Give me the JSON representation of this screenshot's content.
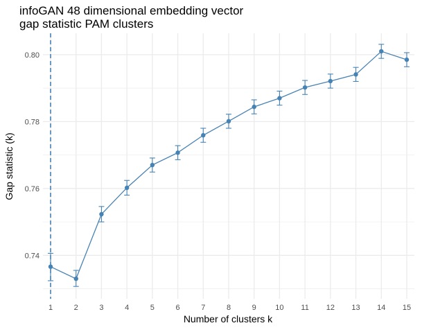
{
  "chart_data": {
    "type": "line",
    "title_lines": [
      "infoGAN 48 dimensional embedding vector",
      "gap statistic PAM clusters"
    ],
    "xlabel": "Number of clusters k",
    "ylabel": "Gap statistic (k)",
    "x": [
      1,
      2,
      3,
      4,
      5,
      6,
      7,
      8,
      9,
      10,
      11,
      12,
      13,
      14,
      15
    ],
    "y": [
      0.7366,
      0.733,
      0.7523,
      0.7602,
      0.767,
      0.7707,
      0.7759,
      0.7801,
      0.7844,
      0.787,
      0.7902,
      0.7921,
      0.7941,
      0.801,
      0.7985
    ],
    "error_low": [
      0.7324,
      0.7307,
      0.75,
      0.758,
      0.7649,
      0.7686,
      0.7738,
      0.778,
      0.7823,
      0.7849,
      0.7881,
      0.79,
      0.792,
      0.7989,
      0.7964
    ],
    "error_high": [
      0.7406,
      0.7355,
      0.7546,
      0.7624,
      0.7691,
      0.7728,
      0.778,
      0.7822,
      0.7865,
      0.7891,
      0.7923,
      0.7942,
      0.7962,
      0.8031,
      0.8006
    ],
    "x_ticks": [
      1,
      2,
      3,
      4,
      5,
      6,
      7,
      8,
      9,
      10,
      11,
      12,
      13,
      14,
      15
    ],
    "x_tick_labels": [
      "1",
      "2",
      "3",
      "4",
      "5",
      "6",
      "7",
      "8",
      "9",
      "10",
      "11",
      "12",
      "13",
      "14",
      "15"
    ],
    "y_ticks": [
      0.74,
      0.76,
      0.78,
      0.8
    ],
    "y_tick_labels": [
      "0.74",
      "0.76",
      "0.78",
      "0.80"
    ],
    "xlim": [
      0.7,
      15.3
    ],
    "ylim": [
      0.727,
      0.8064
    ],
    "vline_x": 1,
    "grid": true,
    "colors": {
      "series": "#4682b4",
      "vline": "#4682b4",
      "grid": "#ebebeb"
    }
  }
}
